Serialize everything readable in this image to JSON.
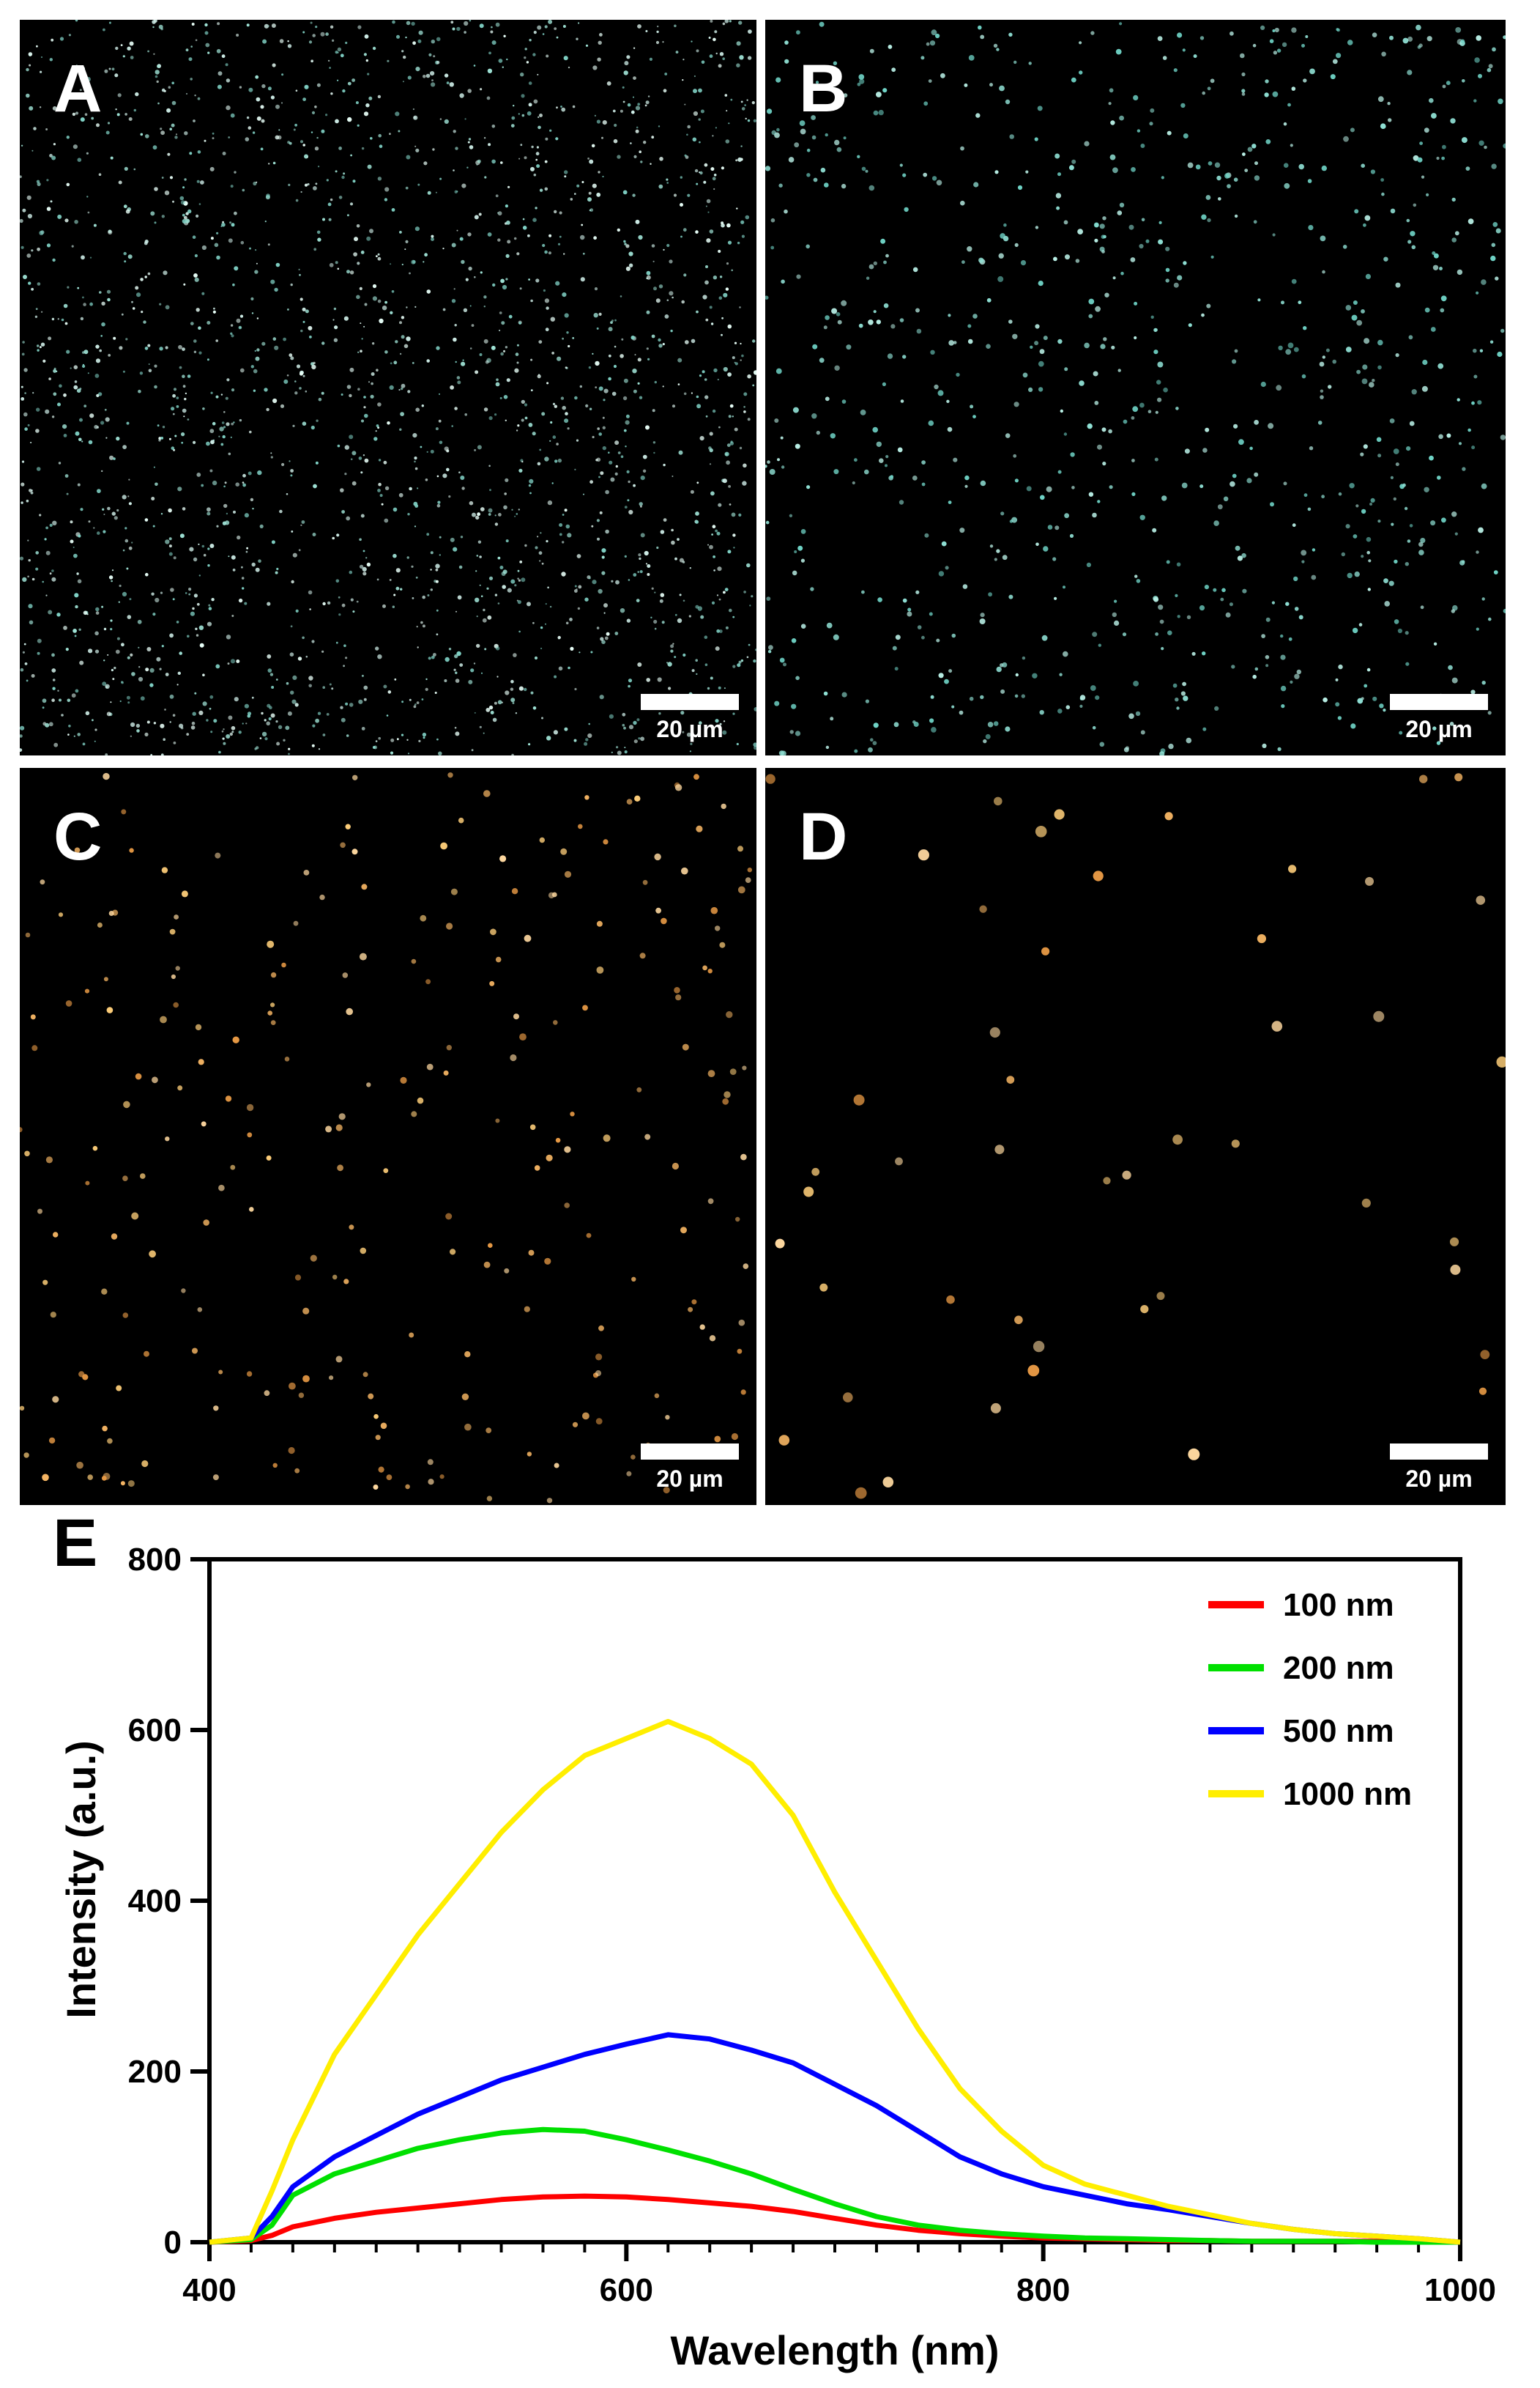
{
  "panels": [
    {
      "letter": "A",
      "scale_label": "20 µm",
      "particle_tone": "cyan-white",
      "particle_density": "very high"
    },
    {
      "letter": "B",
      "scale_label": "20 µm",
      "particle_tone": "cyan",
      "particle_density": "high"
    },
    {
      "letter": "C",
      "scale_label": "20 µm",
      "particle_tone": "orange",
      "particle_density": "medium"
    },
    {
      "letter": "D",
      "scale_label": "20 µm",
      "particle_tone": "orange",
      "particle_density": "low"
    }
  ],
  "chart_label": "E",
  "chart_data": {
    "type": "line",
    "title": "",
    "xlabel": "Wavelength (nm)",
    "ylabel": "Intensity (a.u.)",
    "xlim": [
      400,
      1000
    ],
    "ylim": [
      0,
      800
    ],
    "xticks": [
      400,
      600,
      800,
      1000
    ],
    "yticks": [
      0,
      200,
      400,
      600,
      800
    ],
    "grid": false,
    "legend_position": "top-right",
    "x": [
      400,
      420,
      430,
      440,
      460,
      480,
      500,
      520,
      540,
      560,
      580,
      600,
      620,
      640,
      660,
      680,
      700,
      720,
      740,
      760,
      780,
      800,
      820,
      840,
      860,
      880,
      900,
      920,
      940,
      960,
      980,
      1000
    ],
    "series": [
      {
        "name": "100 nm",
        "color": "#ff0000",
        "values": [
          0,
          2,
          8,
          18,
          28,
          35,
          40,
          45,
          50,
          53,
          54,
          53,
          50,
          46,
          42,
          36,
          28,
          20,
          14,
          10,
          7,
          5,
          4,
          3,
          2,
          2,
          1,
          1,
          1,
          1,
          0,
          0
        ]
      },
      {
        "name": "200 nm",
        "color": "#00e000",
        "values": [
          0,
          3,
          20,
          55,
          80,
          95,
          110,
          120,
          128,
          132,
          130,
          120,
          108,
          95,
          80,
          62,
          45,
          30,
          20,
          14,
          10,
          7,
          5,
          4,
          3,
          2,
          1,
          1,
          1,
          0,
          0,
          0
        ]
      },
      {
        "name": "500 nm",
        "color": "#0000ff",
        "values": [
          0,
          5,
          30,
          65,
          100,
          125,
          150,
          170,
          190,
          205,
          220,
          232,
          243,
          238,
          225,
          210,
          185,
          160,
          130,
          100,
          80,
          65,
          55,
          45,
          38,
          30,
          22,
          15,
          10,
          7,
          4,
          0
        ]
      },
      {
        "name": "1000 nm",
        "color": "#ffee00",
        "values": [
          0,
          5,
          60,
          120,
          220,
          290,
          360,
          420,
          480,
          530,
          570,
          590,
          610,
          590,
          560,
          500,
          410,
          330,
          250,
          180,
          130,
          90,
          68,
          55,
          42,
          32,
          22,
          15,
          10,
          7,
          4,
          0
        ]
      }
    ]
  }
}
